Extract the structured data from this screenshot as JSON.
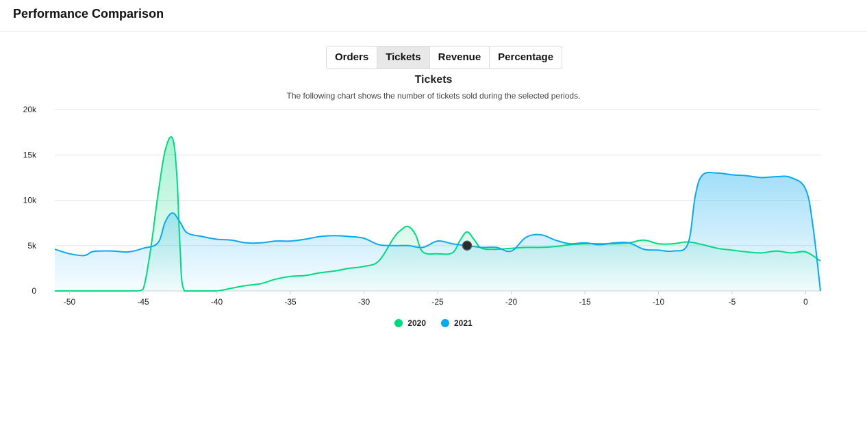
{
  "header": {
    "title": "Performance Comparison"
  },
  "tabs": [
    {
      "label": "Orders",
      "active": false
    },
    {
      "label": "Tickets",
      "active": true
    },
    {
      "label": "Revenue",
      "active": false
    },
    {
      "label": "Percentage",
      "active": false
    }
  ],
  "chart_data": {
    "type": "area",
    "title": "Tickets",
    "subtitle": "The following chart shows the number of tickets sold during the selected periods.",
    "xlim": [
      -51,
      1
    ],
    "ylim": [
      0,
      20000
    ],
    "x_ticks": [
      -50,
      -45,
      -40,
      -35,
      -30,
      -25,
      -20,
      -15,
      -10,
      -5,
      0
    ],
    "y_ticks": [
      0,
      5000,
      10000,
      15000,
      20000
    ],
    "y_tick_labels": [
      "0",
      "5k",
      "10k",
      "15k",
      "20k"
    ],
    "grid": true,
    "legend_position": "bottom-center",
    "series": [
      {
        "name": "2020",
        "color": "#00d980",
        "points": [
          [
            -51,
            0
          ],
          [
            -49,
            0
          ],
          [
            -47,
            0
          ],
          [
            -45.5,
            0
          ],
          [
            -45,
            200
          ],
          [
            -44.5,
            4500
          ],
          [
            -44,
            10500
          ],
          [
            -43.5,
            15500
          ],
          [
            -43,
            16800
          ],
          [
            -42.7,
            12500
          ],
          [
            -42.5,
            5000
          ],
          [
            -42.2,
            0
          ],
          [
            -41,
            0
          ],
          [
            -40,
            0
          ],
          [
            -39,
            300
          ],
          [
            -38,
            600
          ],
          [
            -37,
            800
          ],
          [
            -36,
            1300
          ],
          [
            -35,
            1600
          ],
          [
            -34,
            1700
          ],
          [
            -33,
            2000
          ],
          [
            -32,
            2200
          ],
          [
            -31,
            2500
          ],
          [
            -30,
            2700
          ],
          [
            -29,
            3300
          ],
          [
            -28,
            5800
          ],
          [
            -27.5,
            6700
          ],
          [
            -27,
            7100
          ],
          [
            -26.5,
            6200
          ],
          [
            -26,
            4300
          ],
          [
            -25,
            4100
          ],
          [
            -24,
            4200
          ],
          [
            -23.5,
            5500
          ],
          [
            -23,
            6500
          ],
          [
            -22.5,
            5600
          ],
          [
            -22,
            4700
          ],
          [
            -21,
            4600
          ],
          [
            -20,
            4700
          ],
          [
            -19,
            4800
          ],
          [
            -18,
            4800
          ],
          [
            -17,
            4900
          ],
          [
            -16,
            5100
          ],
          [
            -15,
            5200
          ],
          [
            -14,
            5200
          ],
          [
            -13,
            5200
          ],
          [
            -12,
            5300
          ],
          [
            -11,
            5600
          ],
          [
            -10,
            5200
          ],
          [
            -9,
            5200
          ],
          [
            -8,
            5400
          ],
          [
            -7,
            5100
          ],
          [
            -6,
            4700
          ],
          [
            -5,
            4500
          ],
          [
            -4,
            4300
          ],
          [
            -3,
            4200
          ],
          [
            -2,
            4400
          ],
          [
            -1,
            4200
          ],
          [
            0,
            4300
          ],
          [
            1,
            3300
          ]
        ]
      },
      {
        "name": "2021",
        "color": "#0aa8ef",
        "points": [
          [
            -51,
            4600
          ],
          [
            -50,
            4100
          ],
          [
            -49,
            3900
          ],
          [
            -48.5,
            4300
          ],
          [
            -48,
            4400
          ],
          [
            -47,
            4400
          ],
          [
            -46,
            4300
          ],
          [
            -45,
            4700
          ],
          [
            -44,
            5300
          ],
          [
            -43.5,
            7600
          ],
          [
            -43,
            8600
          ],
          [
            -42.5,
            7600
          ],
          [
            -42,
            6400
          ],
          [
            -41,
            6000
          ],
          [
            -40,
            5700
          ],
          [
            -39,
            5600
          ],
          [
            -38,
            5300
          ],
          [
            -37,
            5300
          ],
          [
            -36,
            5500
          ],
          [
            -35,
            5500
          ],
          [
            -34,
            5700
          ],
          [
            -33,
            6000
          ],
          [
            -32,
            6100
          ],
          [
            -31,
            6000
          ],
          [
            -30,
            5800
          ],
          [
            -29,
            5100
          ],
          [
            -28,
            5000
          ],
          [
            -27,
            5000
          ],
          [
            -26,
            4800
          ],
          [
            -25,
            5500
          ],
          [
            -24,
            5200
          ],
          [
            -23,
            5000
          ],
          [
            -22,
            4800
          ],
          [
            -21,
            4800
          ],
          [
            -20,
            4400
          ],
          [
            -19,
            5900
          ],
          [
            -18,
            6200
          ],
          [
            -17,
            5600
          ],
          [
            -16,
            5200
          ],
          [
            -15,
            5300
          ],
          [
            -14,
            5100
          ],
          [
            -13,
            5300
          ],
          [
            -12,
            5300
          ],
          [
            -11,
            4600
          ],
          [
            -10,
            4500
          ],
          [
            -9,
            4400
          ],
          [
            -8,
            5200
          ],
          [
            -7.5,
            10500
          ],
          [
            -7,
            12800
          ],
          [
            -6,
            13000
          ],
          [
            -5,
            12800
          ],
          [
            -4,
            12700
          ],
          [
            -3,
            12500
          ],
          [
            -2,
            12600
          ],
          [
            -1,
            12500
          ],
          [
            0,
            11200
          ],
          [
            0.5,
            7000
          ],
          [
            1,
            0
          ]
        ]
      }
    ],
    "highlight_point": {
      "x": -23,
      "y": 5000
    }
  }
}
